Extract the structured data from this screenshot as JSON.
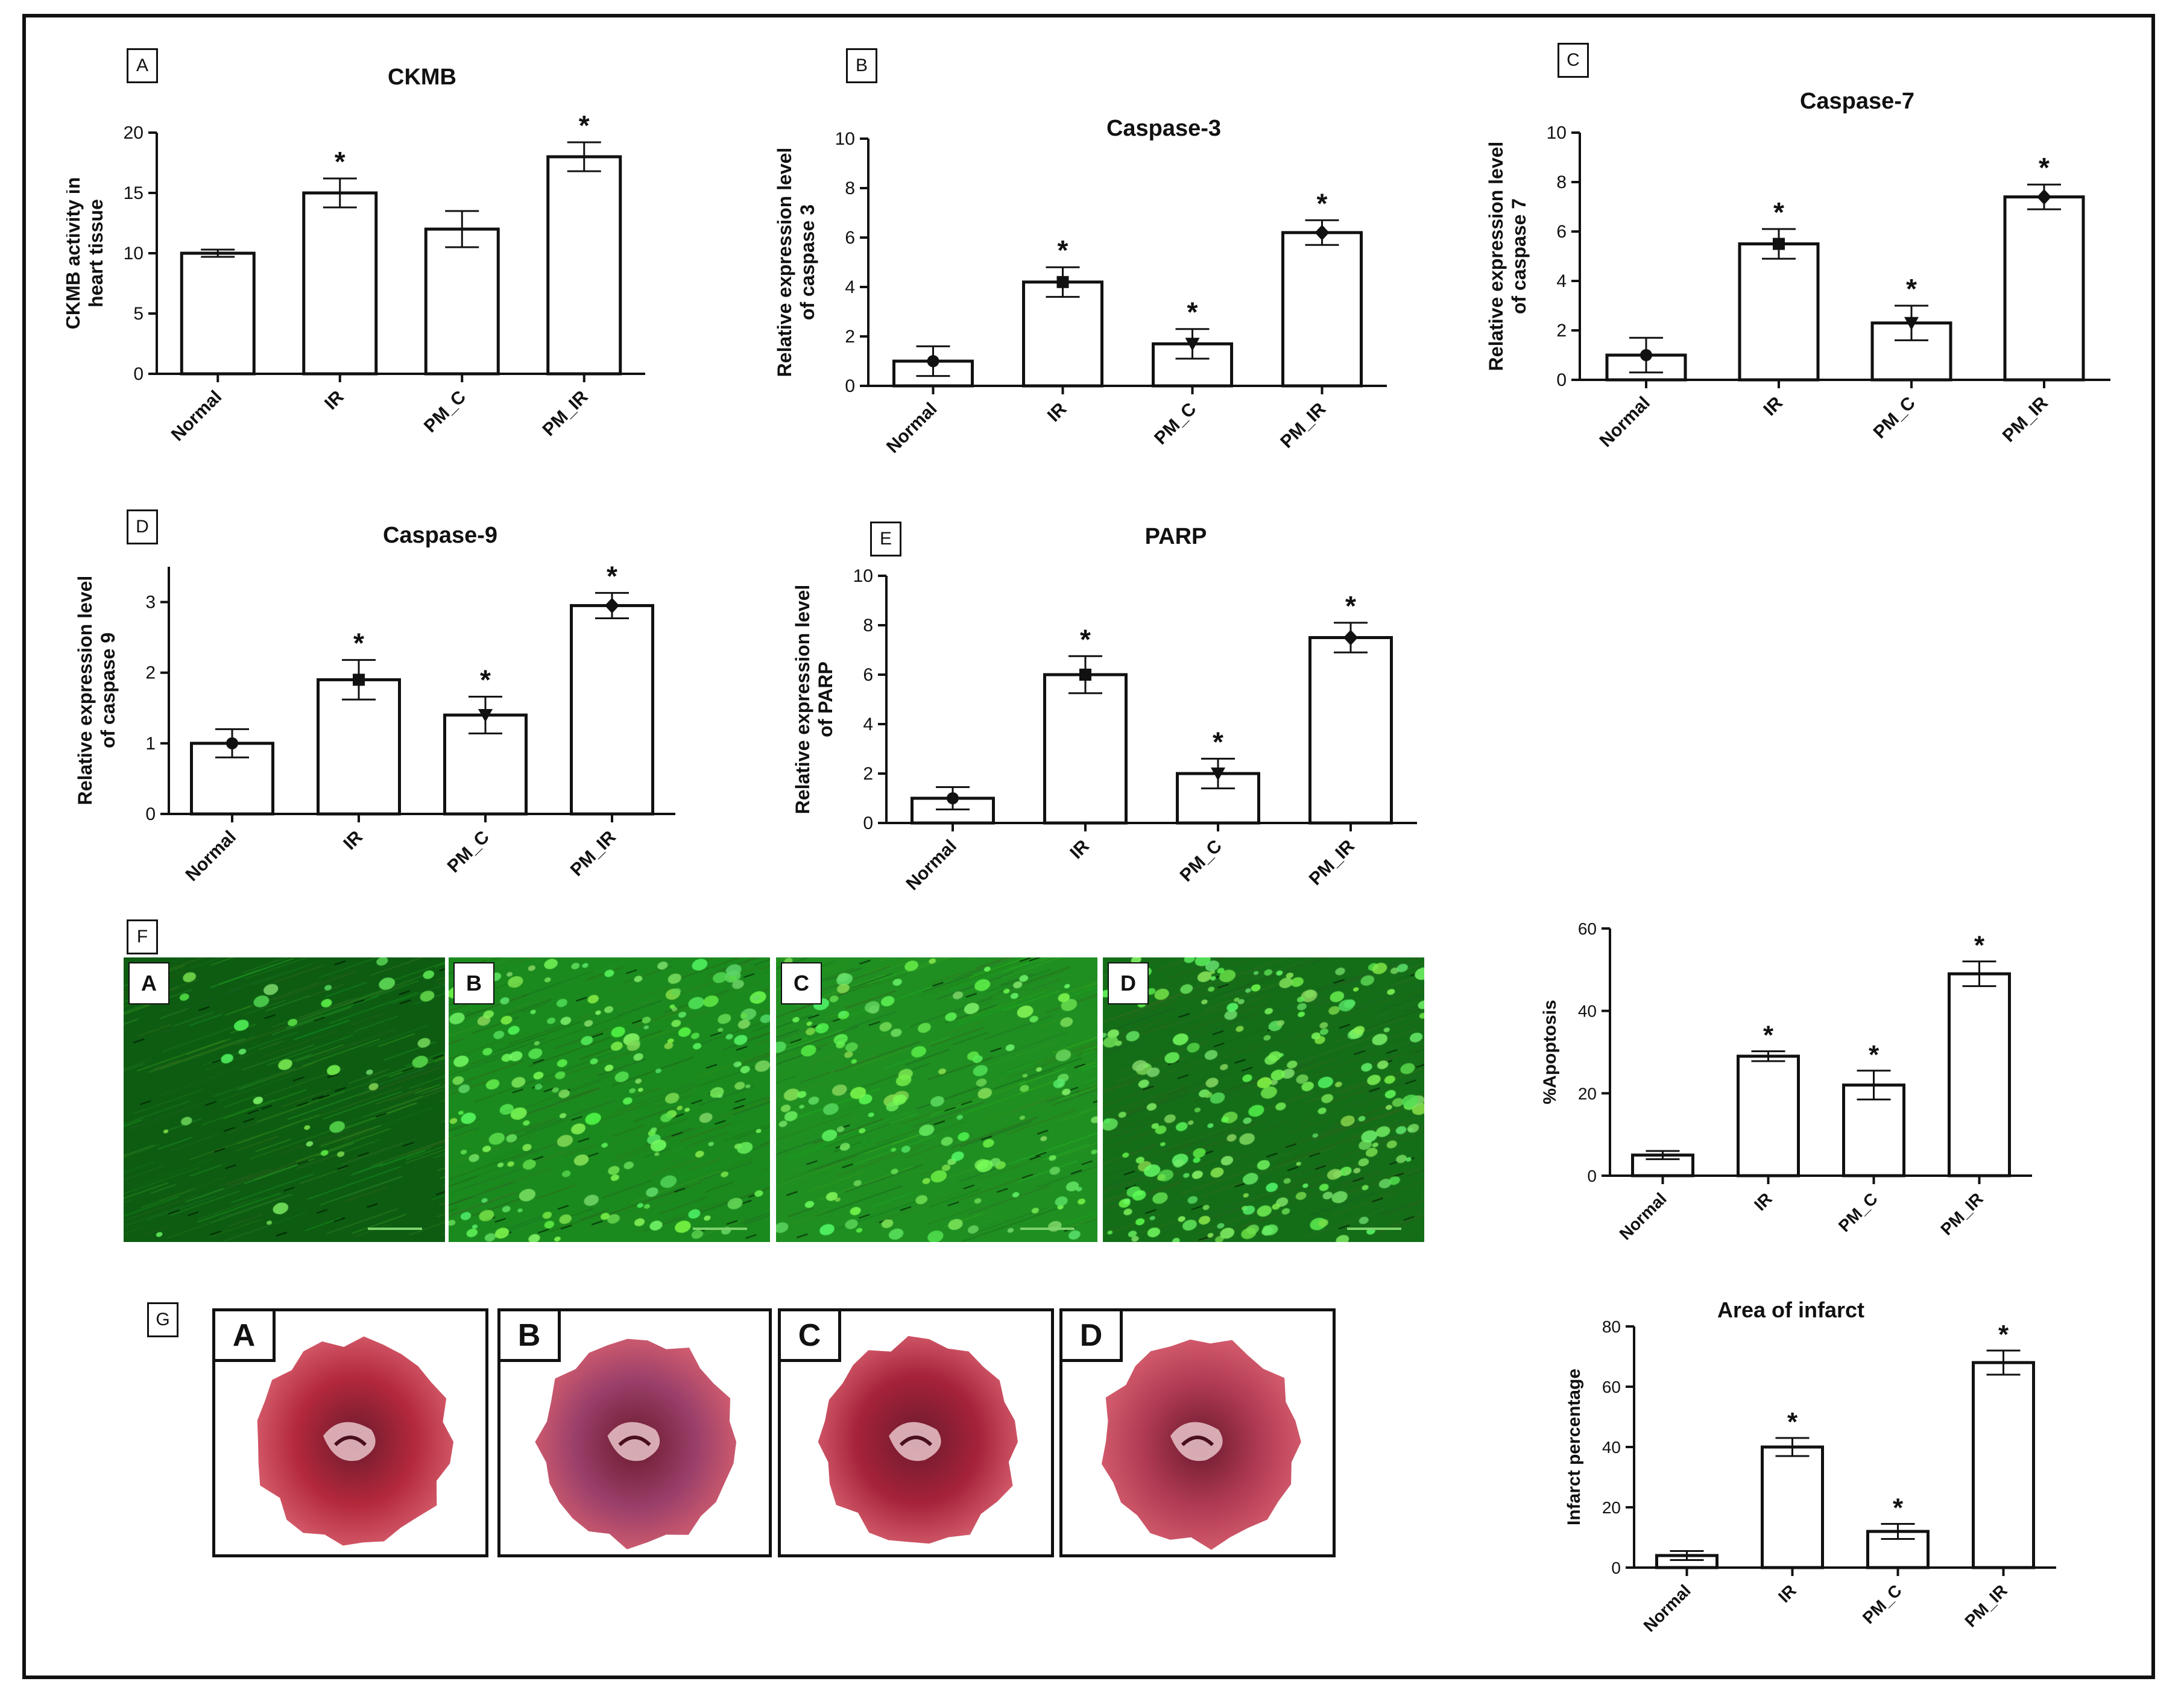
{
  "panels": {
    "A": "A",
    "B": "B",
    "C": "C",
    "D": "D",
    "E": "E",
    "F": "F",
    "G": "G"
  },
  "micrographs": [
    {
      "label": "A",
      "base": "#0d5c12",
      "spot_density": 0.15,
      "streak": 0.6
    },
    {
      "label": "B",
      "base": "#1a8a1e",
      "spot_density": 0.8,
      "streak": 0.5
    },
    {
      "label": "C",
      "base": "#1f8f22",
      "spot_density": 0.6,
      "streak": 0.8
    },
    {
      "label": "D",
      "base": "#146e18",
      "spot_density": 1.0,
      "streak": 0.2
    }
  ],
  "hearts": [
    {
      "label": "A",
      "color": "#b3283b"
    },
    {
      "label": "B",
      "color": "#9a3f6a"
    },
    {
      "label": "C",
      "color": "#a5223a"
    },
    {
      "label": "D",
      "color": "#b23b55"
    }
  ],
  "chart_data": [
    {
      "id": "ckmb",
      "type": "bar",
      "title": "CKMB",
      "ylabel": [
        "CKMB activity in",
        "heart tissue"
      ],
      "categories": [
        "Normal",
        "IR",
        "PM_C",
        "PM_IR"
      ],
      "values": [
        10,
        15,
        12,
        18
      ],
      "errors": [
        0.3,
        1.2,
        1.5,
        1.2
      ],
      "significance": [
        "",
        "*",
        "",
        "*"
      ],
      "markers": [
        "",
        "",
        "",
        ""
      ],
      "ylim": [
        0,
        20
      ],
      "yticks": [
        0,
        5,
        10,
        15,
        20
      ]
    },
    {
      "id": "caspase3",
      "type": "bar",
      "title": "Caspase-3",
      "ylabel": [
        "Relative expression level",
        "of caspase 3"
      ],
      "categories": [
        "Normal",
        "IR",
        "PM_C",
        "PM_IR"
      ],
      "values": [
        1,
        4.2,
        1.7,
        6.2
      ],
      "errors": [
        0.6,
        0.6,
        0.6,
        0.5
      ],
      "significance": [
        "",
        "*",
        "*",
        "*"
      ],
      "markers": [
        "circle",
        "square",
        "triangle",
        "diamond"
      ],
      "ylim": [
        0,
        10
      ],
      "yticks": [
        0,
        2,
        4,
        6,
        8,
        10
      ]
    },
    {
      "id": "caspase7",
      "type": "bar",
      "title": "Caspase-7",
      "ylabel": [
        "Relative expression level",
        "of caspase 7"
      ],
      "categories": [
        "Normal",
        "IR",
        "PM_C",
        "PM_IR"
      ],
      "values": [
        1,
        5.5,
        2.3,
        7.4
      ],
      "errors": [
        0.7,
        0.6,
        0.7,
        0.5
      ],
      "significance": [
        "",
        "*",
        "*",
        "*"
      ],
      "markers": [
        "circle",
        "square",
        "triangle",
        "diamond"
      ],
      "ylim": [
        0,
        10
      ],
      "yticks": [
        0,
        2,
        4,
        6,
        8,
        10
      ]
    },
    {
      "id": "caspase9",
      "type": "bar",
      "title": "Caspase-9",
      "ylabel": [
        "Relative expression level",
        "of caspase 9"
      ],
      "categories": [
        "Normal",
        "IR",
        "PM_C",
        "PM_IR"
      ],
      "values": [
        1,
        1.9,
        1.4,
        2.95
      ],
      "errors": [
        0.2,
        0.28,
        0.26,
        0.18
      ],
      "significance": [
        "",
        "*",
        "*",
        "*"
      ],
      "markers": [
        "circle",
        "square",
        "triangle",
        "diamond"
      ],
      "ylim": [
        0,
        3.5
      ],
      "yticks": [
        0,
        1,
        2,
        3
      ]
    },
    {
      "id": "parp",
      "type": "bar",
      "title": "PARP",
      "ylabel": [
        "Relative expression level",
        "of PARP"
      ],
      "categories": [
        "Normal",
        "IR",
        "PM_C",
        "PM_IR"
      ],
      "values": [
        1,
        6,
        2,
        7.5
      ],
      "errors": [
        0.45,
        0.75,
        0.6,
        0.6
      ],
      "significance": [
        "",
        "*",
        "*",
        "*"
      ],
      "markers": [
        "circle",
        "square",
        "triangle",
        "diamond"
      ],
      "ylim": [
        0,
        10
      ],
      "yticks": [
        0,
        2,
        4,
        6,
        8,
        10
      ]
    },
    {
      "id": "apoptosis",
      "type": "bar",
      "title": "",
      "ylabel": [
        "%Apoptosis"
      ],
      "categories": [
        "Normal",
        "IR",
        "PM_C",
        "PM_IR"
      ],
      "values": [
        5,
        29,
        22,
        49
      ],
      "errors": [
        1,
        1.2,
        3.5,
        3
      ],
      "significance": [
        "",
        "*",
        "*",
        "*"
      ],
      "markers": [
        "",
        "",
        "",
        ""
      ],
      "ylim": [
        0,
        60
      ],
      "yticks": [
        0,
        20,
        40,
        60
      ]
    },
    {
      "id": "infarct",
      "type": "bar",
      "title": "Area of infarct",
      "ylabel": [
        "Infarct percentage"
      ],
      "categories": [
        "Normal",
        "IR",
        "PM_C",
        "PM_IR"
      ],
      "values": [
        4,
        40,
        12,
        68
      ],
      "errors": [
        1.5,
        3,
        2.5,
        4
      ],
      "significance": [
        "",
        "*",
        "*",
        "*"
      ],
      "markers": [
        "",
        "",
        "",
        ""
      ],
      "ylim": [
        0,
        80
      ],
      "yticks": [
        0,
        20,
        40,
        60,
        80
      ]
    }
  ]
}
